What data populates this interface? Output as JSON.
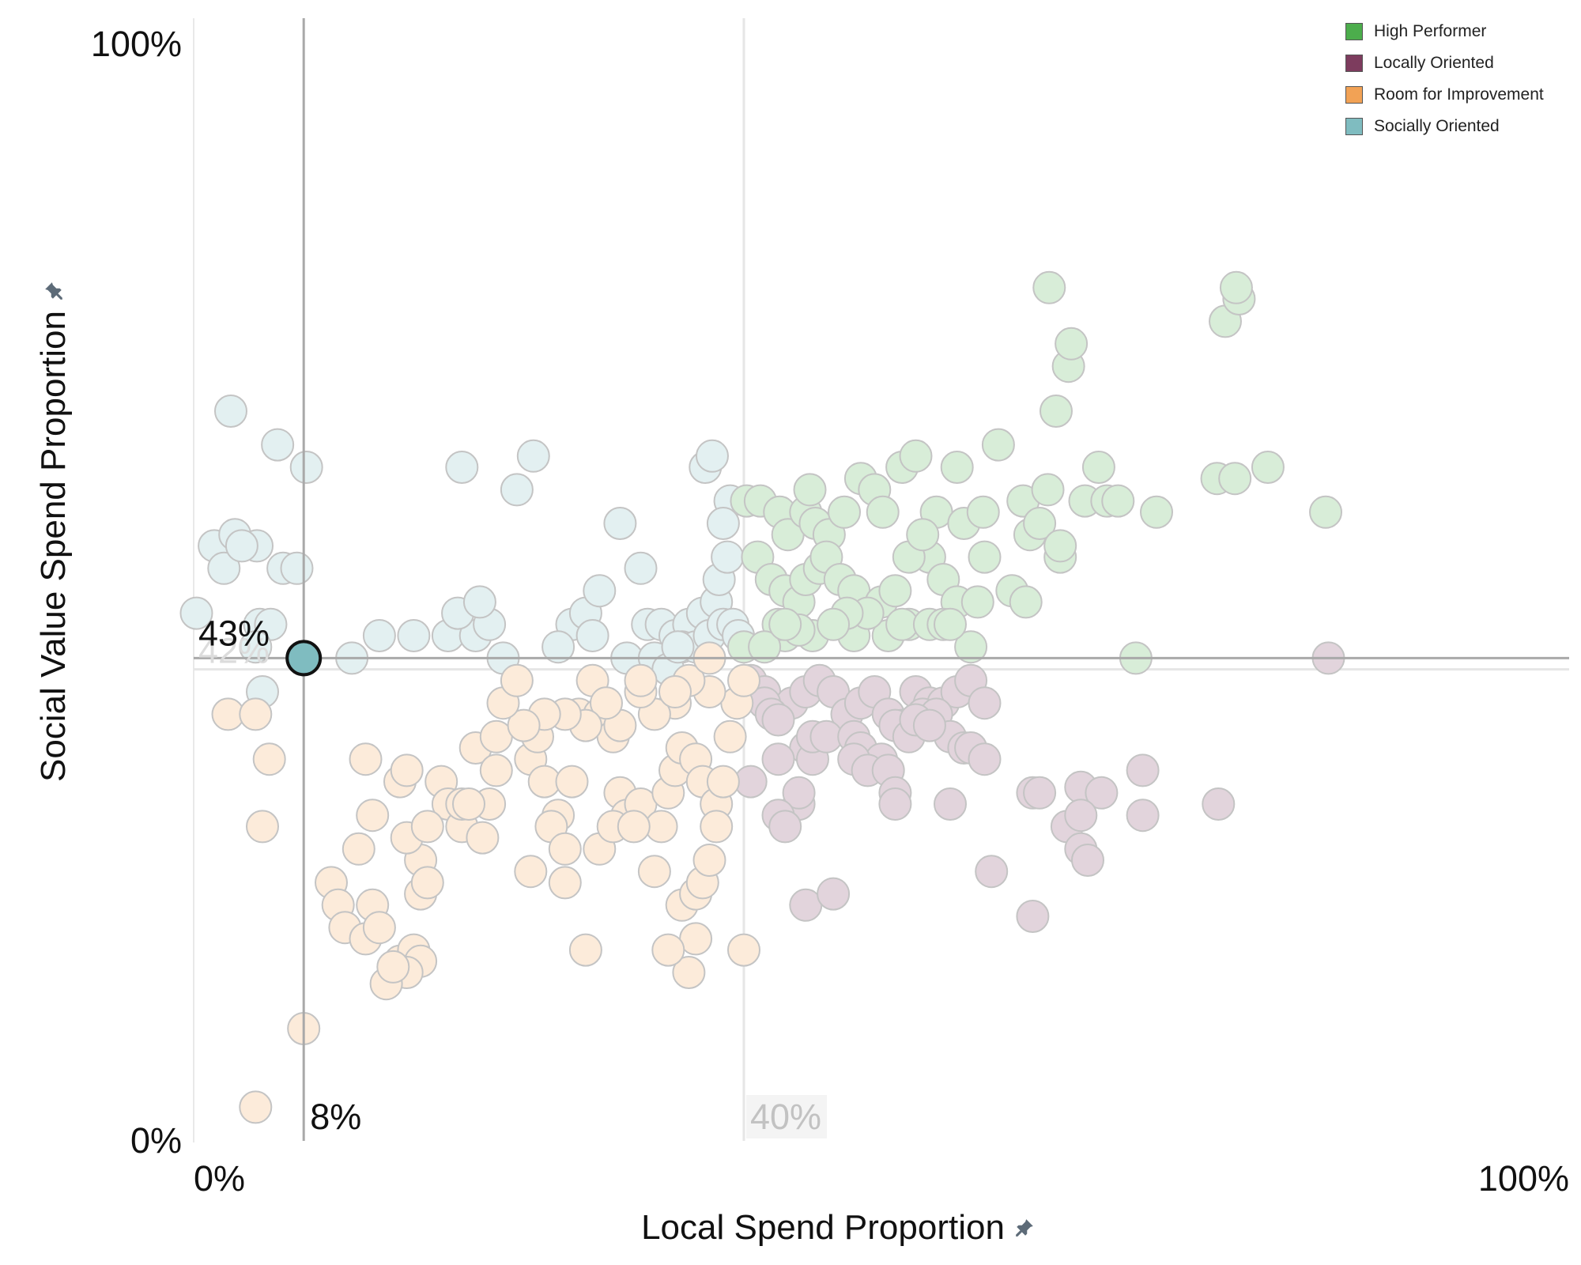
{
  "chart_data": {
    "type": "scatter",
    "xlabel": "Local Spend Proportion",
    "ylabel": "Social Value Spend Proportion",
    "xlim": [
      0,
      100
    ],
    "ylim": [
      0,
      100
    ],
    "x_tick_labels": [
      "0%",
      "100%"
    ],
    "y_tick_labels": [
      "0%",
      "100%"
    ],
    "legend_position": "top-right",
    "legend": [
      {
        "name": "High Performer",
        "color": "#4cad4c"
      },
      {
        "name": "Locally Oriented",
        "color": "#7d3c5e"
      },
      {
        "name": "Room for Improvement",
        "color": "#f2a255"
      },
      {
        "name": "Socially Oriented",
        "color": "#7fbcc0"
      }
    ],
    "reference_lines": {
      "selected_x": 8,
      "selected_x_label": "8%",
      "selected_y": 43,
      "selected_y_label": "43%",
      "median_x": 40,
      "median_x_label": "40%",
      "median_y": 42,
      "median_y_label": "42%"
    },
    "highlighted_point": {
      "x": 8,
      "y": 43,
      "group": "Socially Oriented"
    },
    "series": [
      {
        "name": "Socially Oriented",
        "color": "#7fbcc0",
        "points": [
          [
            2.7,
            65
          ],
          [
            6.1,
            62
          ],
          [
            8.2,
            60
          ],
          [
            1.5,
            53
          ],
          [
            3,
            54
          ],
          [
            4.6,
            53
          ],
          [
            6.5,
            51
          ],
          [
            7.5,
            51
          ],
          [
            2.2,
            51
          ],
          [
            3.5,
            53
          ],
          [
            4.8,
            46
          ],
          [
            5.6,
            46
          ],
          [
            0.2,
            47
          ],
          [
            4.5,
            44
          ],
          [
            5,
            40
          ],
          [
            13.5,
            45
          ],
          [
            16,
            45
          ],
          [
            18.5,
            45
          ],
          [
            19.5,
            60
          ],
          [
            20.5,
            45
          ],
          [
            21.5,
            46
          ],
          [
            23.5,
            58
          ],
          [
            19.2,
            47
          ],
          [
            20.8,
            48
          ],
          [
            24.7,
            61
          ],
          [
            27.5,
            46
          ],
          [
            28.5,
            47
          ],
          [
            29.5,
            49
          ],
          [
            31,
            55
          ],
          [
            32.5,
            51
          ],
          [
            33,
            46
          ],
          [
            34,
            46
          ],
          [
            35,
            45
          ],
          [
            36,
            46
          ],
          [
            37,
            47
          ],
          [
            38,
            48
          ],
          [
            35.5,
            44
          ],
          [
            36.5,
            44
          ],
          [
            37.5,
            45
          ],
          [
            38.5,
            46
          ],
          [
            39.2,
            46
          ],
          [
            38.2,
            50
          ],
          [
            38.8,
            52
          ],
          [
            39,
            57
          ],
          [
            38.5,
            55
          ],
          [
            37.2,
            60
          ],
          [
            37.7,
            61
          ],
          [
            31.5,
            43
          ],
          [
            33.5,
            43
          ],
          [
            34.5,
            42
          ],
          [
            35.2,
            44
          ],
          [
            22.5,
            43
          ],
          [
            11.5,
            43
          ],
          [
            26.5,
            44
          ],
          [
            29,
            45
          ],
          [
            39.6,
            45
          ]
        ]
      },
      {
        "name": "High Performer",
        "color": "#4cad4c",
        "points": [
          [
            40.2,
            57
          ],
          [
            41.2,
            57
          ],
          [
            42.6,
            56
          ],
          [
            43.2,
            54
          ],
          [
            44.5,
            56
          ],
          [
            45.2,
            55
          ],
          [
            44.8,
            58
          ],
          [
            46.2,
            54
          ],
          [
            47.3,
            56
          ],
          [
            48.5,
            59
          ],
          [
            49.5,
            58
          ],
          [
            50.1,
            56
          ],
          [
            51.5,
            60
          ],
          [
            52.5,
            61
          ],
          [
            53.5,
            52
          ],
          [
            54,
            56
          ],
          [
            55.5,
            60
          ],
          [
            56,
            55
          ],
          [
            57.4,
            56
          ],
          [
            58.5,
            62
          ],
          [
            60.3,
            57
          ],
          [
            60.8,
            54
          ],
          [
            62.1,
            58
          ],
          [
            62.7,
            65
          ],
          [
            63.6,
            69
          ],
          [
            64.8,
            57
          ],
          [
            65.8,
            60
          ],
          [
            66.4,
            57
          ],
          [
            67.2,
            57
          ],
          [
            70,
            56
          ],
          [
            74.4,
            59
          ],
          [
            75.7,
            59
          ],
          [
            78.1,
            60
          ],
          [
            82.3,
            56
          ],
          [
            75,
            73
          ],
          [
            76,
            75
          ],
          [
            75.8,
            76
          ],
          [
            62.2,
            76
          ],
          [
            63.8,
            71
          ],
          [
            41,
            52
          ],
          [
            42,
            50
          ],
          [
            43,
            49
          ],
          [
            44,
            48
          ],
          [
            44.5,
            50
          ],
          [
            45.5,
            51
          ],
          [
            46,
            52
          ],
          [
            47,
            50
          ],
          [
            48,
            49
          ],
          [
            49,
            47
          ],
          [
            50,
            48
          ],
          [
            51,
            49
          ],
          [
            52,
            52
          ],
          [
            53,
            54
          ],
          [
            54.5,
            50
          ],
          [
            55.5,
            48
          ],
          [
            56.5,
            44
          ],
          [
            57.5,
            52
          ],
          [
            52,
            46
          ],
          [
            48,
            45
          ],
          [
            45,
            45
          ],
          [
            43,
            45
          ],
          [
            42.5,
            46
          ],
          [
            40,
            44
          ],
          [
            41.5,
            44
          ],
          [
            50.5,
            45
          ],
          [
            51.5,
            46
          ],
          [
            53.5,
            46
          ],
          [
            54.5,
            46
          ],
          [
            49,
            47
          ],
          [
            47.5,
            47
          ],
          [
            46.5,
            46
          ],
          [
            44,
            45.5
          ],
          [
            43,
            46
          ],
          [
            55,
            46
          ],
          [
            57,
            48
          ],
          [
            59.5,
            49
          ],
          [
            60.5,
            48
          ],
          [
            61.5,
            55
          ],
          [
            63,
            52
          ],
          [
            68.5,
            43
          ],
          [
            63,
            53
          ]
        ]
      },
      {
        "name": "Locally Oriented",
        "color": "#7d3c5e",
        "points": [
          [
            40.5,
            41
          ],
          [
            41.5,
            40
          ],
          [
            42.5,
            38
          ],
          [
            43.5,
            39
          ],
          [
            44.5,
            40
          ],
          [
            45.5,
            41
          ],
          [
            46.5,
            40
          ],
          [
            47.5,
            38
          ],
          [
            48.5,
            39
          ],
          [
            49.5,
            40
          ],
          [
            50.5,
            38
          ],
          [
            51.5,
            37
          ],
          [
            52.5,
            40
          ],
          [
            53.5,
            39
          ],
          [
            54.5,
            39
          ],
          [
            55.5,
            40
          ],
          [
            56.5,
            41
          ],
          [
            57.5,
            39
          ],
          [
            41.5,
            39
          ],
          [
            42,
            38
          ],
          [
            42.5,
            37.5
          ],
          [
            44.5,
            35
          ],
          [
            45,
            34
          ],
          [
            45,
            36
          ],
          [
            46,
            36
          ],
          [
            48,
            36
          ],
          [
            48.5,
            35
          ],
          [
            50,
            34
          ],
          [
            51,
            37
          ],
          [
            52,
            36
          ],
          [
            53,
            38
          ],
          [
            54,
            38
          ],
          [
            55,
            36
          ],
          [
            56,
            35
          ],
          [
            40.5,
            32
          ],
          [
            42.5,
            34
          ],
          [
            44,
            30
          ],
          [
            44,
            31
          ],
          [
            48,
            34
          ],
          [
            49,
            33
          ],
          [
            50.5,
            33
          ],
          [
            51,
            31
          ],
          [
            51,
            30
          ],
          [
            56.5,
            35
          ],
          [
            57.5,
            34
          ],
          [
            61,
            31
          ],
          [
            61.5,
            31
          ],
          [
            64.5,
            31.5
          ],
          [
            66,
            31
          ],
          [
            69,
            33
          ],
          [
            63.5,
            28
          ],
          [
            64.5,
            26
          ],
          [
            65,
            25
          ],
          [
            58,
            24
          ],
          [
            61,
            20
          ],
          [
            55,
            30
          ],
          [
            64.5,
            29
          ],
          [
            69,
            29
          ],
          [
            74.5,
            30
          ],
          [
            82.5,
            43
          ],
          [
            44.5,
            21
          ],
          [
            46.5,
            22
          ],
          [
            42.5,
            29
          ],
          [
            43,
            28
          ],
          [
            52.5,
            37.5
          ],
          [
            53.5,
            37
          ]
        ]
      },
      {
        "name": "Room for Improvement",
        "color": "#f2a255",
        "points": [
          [
            2.5,
            38
          ],
          [
            4.5,
            38
          ],
          [
            5.5,
            34
          ],
          [
            5,
            28
          ],
          [
            8,
            10
          ],
          [
            4.5,
            3
          ],
          [
            12.5,
            34
          ],
          [
            13,
            29
          ],
          [
            15,
            32
          ],
          [
            15.5,
            33
          ],
          [
            18,
            32
          ],
          [
            18.5,
            30
          ],
          [
            19.5,
            28
          ],
          [
            16.5,
            25
          ],
          [
            16.5,
            22
          ],
          [
            17,
            23
          ],
          [
            10,
            23
          ],
          [
            10.5,
            21
          ],
          [
            11,
            19
          ],
          [
            12.5,
            18
          ],
          [
            13,
            21
          ],
          [
            13.5,
            19
          ],
          [
            15,
            16
          ],
          [
            16,
            17
          ],
          [
            16.5,
            16
          ],
          [
            15.5,
            15
          ],
          [
            14,
            14
          ],
          [
            14.5,
            15.5
          ],
          [
            12,
            26
          ],
          [
            15.5,
            27
          ],
          [
            17,
            28
          ],
          [
            19.5,
            30
          ],
          [
            20.5,
            35
          ],
          [
            22,
            36
          ],
          [
            24.5,
            34
          ],
          [
            25,
            36
          ],
          [
            25.5,
            32
          ],
          [
            26.5,
            29
          ],
          [
            27.5,
            32
          ],
          [
            28,
            38
          ],
          [
            29,
            41
          ],
          [
            29.5,
            38
          ],
          [
            30.5,
            36
          ],
          [
            31,
            31
          ],
          [
            31.5,
            29
          ],
          [
            32.5,
            30
          ],
          [
            34,
            28
          ],
          [
            34.5,
            31
          ],
          [
            35,
            33
          ],
          [
            35.5,
            35
          ],
          [
            36.5,
            34
          ],
          [
            37,
            32
          ],
          [
            38,
            30
          ],
          [
            38.5,
            32
          ],
          [
            39,
            36
          ],
          [
            39.5,
            39
          ],
          [
            37.5,
            40
          ],
          [
            36,
            41
          ],
          [
            35,
            39
          ],
          [
            33.5,
            38
          ],
          [
            32.5,
            40
          ],
          [
            31,
            37
          ],
          [
            30,
            39
          ],
          [
            28.5,
            37
          ],
          [
            27,
            38
          ],
          [
            25.5,
            38
          ],
          [
            24,
            37
          ],
          [
            21.5,
            30
          ],
          [
            26,
            28
          ],
          [
            27,
            26
          ],
          [
            29.5,
            26
          ],
          [
            30.5,
            28
          ],
          [
            32,
            28
          ],
          [
            33.5,
            24
          ],
          [
            35.5,
            21
          ],
          [
            36.5,
            22
          ],
          [
            37,
            23
          ],
          [
            37.5,
            25
          ],
          [
            38,
            28
          ],
          [
            36.5,
            18
          ],
          [
            36,
            15
          ],
          [
            34.5,
            17
          ],
          [
            28.5,
            17
          ],
          [
            27,
            23
          ],
          [
            24.5,
            24
          ],
          [
            20,
            30
          ],
          [
            21,
            27
          ],
          [
            22,
            33
          ],
          [
            22.5,
            39
          ],
          [
            32.5,
            41
          ],
          [
            35,
            40
          ],
          [
            37.5,
            43
          ],
          [
            40,
            41
          ],
          [
            40,
            17
          ],
          [
            23.5,
            41
          ]
        ]
      }
    ]
  }
}
